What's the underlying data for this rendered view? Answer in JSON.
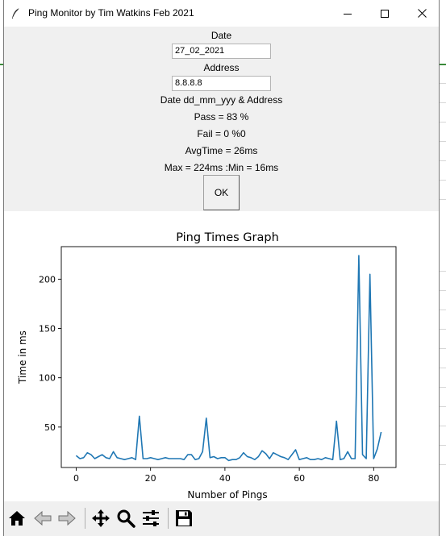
{
  "window": {
    "title": "Ping Monitor by Tim Watkins Feb 2021"
  },
  "form": {
    "date_label": "Date",
    "date_value": "27_02_2021",
    "address_label": "Address",
    "address_value": "8.8.8.8",
    "hint": "Date dd_mm_yyy & Address",
    "pass": "Pass = 83 %",
    "fail": "Fail = 0 %0",
    "avg": "AvgTime = 26ms",
    "maxmin": "Max = 224ms :Min = 16ms",
    "ok_label": "OK"
  },
  "chart_data": {
    "type": "line",
    "title": "Ping Times Graph",
    "xlabel": "Number of Pings",
    "ylabel": "Time in ms",
    "xlim": [
      -4,
      86
    ],
    "ylim": [
      9,
      233
    ],
    "xticks": [
      0,
      20,
      40,
      60,
      80
    ],
    "yticks": [
      50,
      100,
      150,
      200
    ],
    "color": "#1f77b4",
    "grid": false,
    "series": [
      {
        "x": [
          0,
          1,
          2,
          3,
          4,
          5,
          6,
          7,
          8,
          9,
          10,
          11,
          12,
          13,
          14,
          15,
          16,
          17,
          18,
          19,
          20,
          21,
          22,
          23,
          24,
          25,
          26,
          27,
          28,
          29,
          30,
          31,
          32,
          33,
          34,
          35,
          36,
          37,
          38,
          39,
          40,
          41,
          42,
          43,
          44,
          45,
          46,
          47,
          48,
          49,
          50,
          51,
          52,
          53,
          54,
          55,
          56,
          57,
          58,
          59,
          60,
          61,
          62,
          63,
          64,
          65,
          66,
          67,
          68,
          69,
          70,
          71,
          72,
          73,
          74,
          75,
          76,
          77,
          78,
          79,
          80,
          81,
          82
        ],
        "y": [
          21,
          18,
          19,
          24,
          22,
          18,
          20,
          22,
          19,
          18,
          25,
          19,
          18,
          17,
          18,
          19,
          17,
          61,
          18,
          18,
          19,
          18,
          17,
          18,
          19,
          18,
          18,
          18,
          18,
          17,
          22,
          22,
          17,
          18,
          25,
          59,
          19,
          20,
          18,
          19,
          19,
          16,
          17,
          17,
          19,
          24,
          20,
          19,
          17,
          20,
          26,
          23,
          18,
          24,
          22,
          20,
          19,
          17,
          22,
          27,
          17,
          18,
          19,
          17,
          17,
          18,
          17,
          19,
          18,
          17,
          56,
          17,
          18,
          25,
          18,
          18,
          224,
          22,
          18,
          205,
          18,
          28,
          45
        ]
      }
    ]
  },
  "toolbar": {
    "buttons": [
      "home-icon",
      "back-icon",
      "forward-icon",
      "pan-icon",
      "zoom-icon",
      "configure-subplots-icon",
      "save-icon"
    ]
  }
}
